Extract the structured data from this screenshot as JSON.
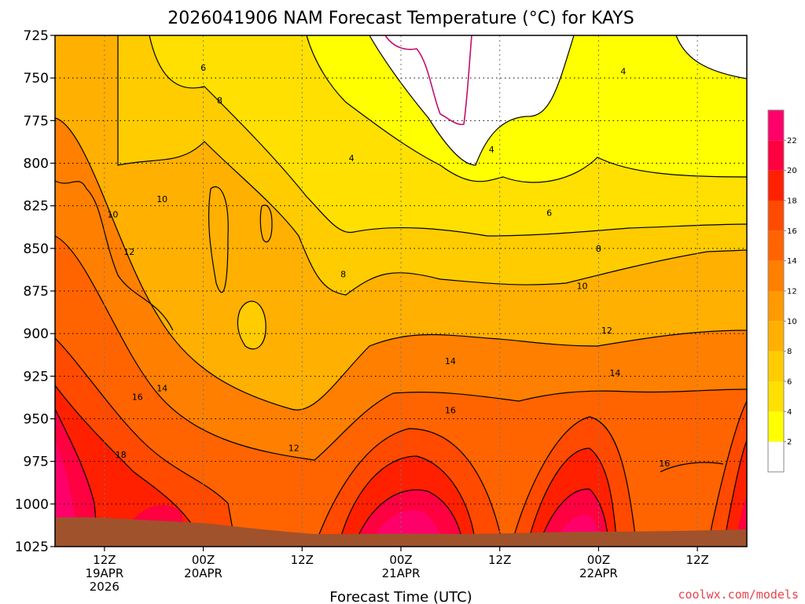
{
  "chart_data": {
    "type": "heatmap",
    "title": "2026041906 NAM Forecast Temperature (°C) for KAYS",
    "xlabel": "Forecast Time (UTC)",
    "ylabel": "",
    "y_scale": "pressure (hPa), inverted",
    "ylim": [
      1025,
      725
    ],
    "y_ticks": [
      725,
      750,
      775,
      800,
      825,
      850,
      875,
      900,
      925,
      950,
      975,
      1000,
      1025
    ],
    "x_ticks": [
      {
        "hour": 6,
        "lines": [
          "12Z",
          "19APR",
          "2026"
        ]
      },
      {
        "hour": 18,
        "lines": [
          "00Z",
          "20APR"
        ]
      },
      {
        "hour": 30,
        "lines": [
          "12Z"
        ]
      },
      {
        "hour": 42,
        "lines": [
          "00Z",
          "21APR"
        ]
      },
      {
        "hour": 54,
        "lines": [
          "12Z"
        ]
      },
      {
        "hour": 66,
        "lines": [
          "00Z",
          "22APR"
        ]
      },
      {
        "hour": 78,
        "lines": [
          "12Z"
        ]
      }
    ],
    "xlim_hours": [
      0,
      84
    ],
    "grid": true,
    "colorbar": {
      "levels": [
        0,
        2,
        4,
        6,
        8,
        10,
        12,
        14,
        16,
        18,
        20,
        22,
        24
      ],
      "tick_labels": [
        "2",
        "4",
        "6",
        "8",
        "10",
        "12",
        "14",
        "16",
        "18",
        "20",
        "22"
      ],
      "colors": [
        "#ffffff",
        "#ffff00",
        "#ffe000",
        "#ffcc00",
        "#ffb000",
        "#ff9a00",
        "#ff7f00",
        "#ff6400",
        "#ff4a00",
        "#ff2000",
        "#ff0040",
        "#ff006a"
      ]
    },
    "ground_color": "#a0522d",
    "contour_labels": [
      {
        "text": "6",
        "hour": 18.0,
        "p": 744
      },
      {
        "text": "8",
        "hour": 20.0,
        "p": 763
      },
      {
        "text": "4",
        "hour": 36.0,
        "p": 797
      },
      {
        "text": "4",
        "hour": 53.0,
        "p": 792
      },
      {
        "text": "4",
        "hour": 69.0,
        "p": 746
      },
      {
        "text": "10",
        "hour": 7.0,
        "p": 830
      },
      {
        "text": "10",
        "hour": 13.0,
        "p": 821
      },
      {
        "text": "12",
        "hour": 9.0,
        "p": 852
      },
      {
        "text": "6",
        "hour": 60.0,
        "p": 829
      },
      {
        "text": "8",
        "hour": 35.0,
        "p": 865
      },
      {
        "text": "8",
        "hour": 66.0,
        "p": 850
      },
      {
        "text": "10",
        "hour": 64.0,
        "p": 872
      },
      {
        "text": "12",
        "hour": 67.0,
        "p": 898
      },
      {
        "text": "14",
        "hour": 48.0,
        "p": 916
      },
      {
        "text": "14",
        "hour": 68.0,
        "p": 923
      },
      {
        "text": "14",
        "hour": 13.0,
        "p": 932
      },
      {
        "text": "16",
        "hour": 10.0,
        "p": 937
      },
      {
        "text": "16",
        "hour": 48.0,
        "p": 945
      },
      {
        "text": "12",
        "hour": 29.0,
        "p": 967
      },
      {
        "text": "18",
        "hour": 8.0,
        "p": 971
      },
      {
        "text": "16",
        "hour": 74.0,
        "p": 976
      }
    ]
  },
  "credit": "coolwx.com/models"
}
